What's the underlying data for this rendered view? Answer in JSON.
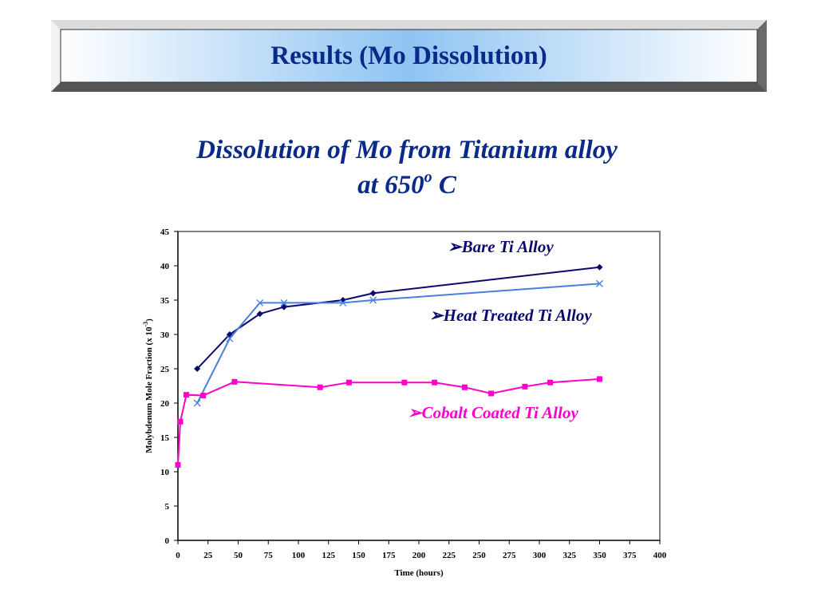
{
  "header": {
    "title": "Results (Mo Dissolution)"
  },
  "subtitle": {
    "line1": "Dissolution of Mo from Titanium alloy",
    "line2_prefix": "at 650",
    "line2_sup": "o",
    "line2_suffix": " C"
  },
  "colors": {
    "title": "#0a2a8a",
    "bare": "#0a0a6e",
    "heat": "#4a7fe0",
    "cobalt": "#ff00cc"
  },
  "chart_data": {
    "type": "line",
    "xlabel": "Time (hours)",
    "ylabel": "Molybdenum Mole Fraction (x 10",
    "ylabel_sup": "-3",
    "ylabel_end": ")",
    "xlim": [
      0,
      400
    ],
    "ylim": [
      0,
      45
    ],
    "xticks": [
      0,
      25,
      50,
      75,
      100,
      125,
      150,
      175,
      200,
      225,
      250,
      275,
      300,
      325,
      350,
      375,
      400
    ],
    "yticks": [
      0,
      5,
      10,
      15,
      20,
      25,
      30,
      35,
      40,
      45
    ],
    "grid": false,
    "series": [
      {
        "name": "Bare Ti Alloy",
        "marker": "diamond",
        "color": "#0a0a6e",
        "x": [
          16,
          43,
          68,
          88,
          137,
          162,
          350
        ],
        "y": [
          25,
          30,
          33,
          34,
          35,
          36,
          39.8
        ]
      },
      {
        "name": "Heat Treated Ti Alloy",
        "marker": "x",
        "color": "#4a7fe0",
        "x": [
          16,
          43,
          68,
          88,
          137,
          162,
          350
        ],
        "y": [
          20,
          29.4,
          34.6,
          34.6,
          34.6,
          35,
          37.4
        ]
      },
      {
        "name": "Cobalt Coated Ti Alloy",
        "marker": "square",
        "color": "#ff00cc",
        "x": [
          0,
          2,
          7,
          21,
          47,
          118,
          142,
          188,
          213,
          238,
          260,
          288,
          309,
          350
        ],
        "y": [
          11,
          17.3,
          21.2,
          21.1,
          23.1,
          22.3,
          23,
          23,
          23,
          22.3,
          21.4,
          22.4,
          23,
          23.5
        ]
      }
    ]
  }
}
